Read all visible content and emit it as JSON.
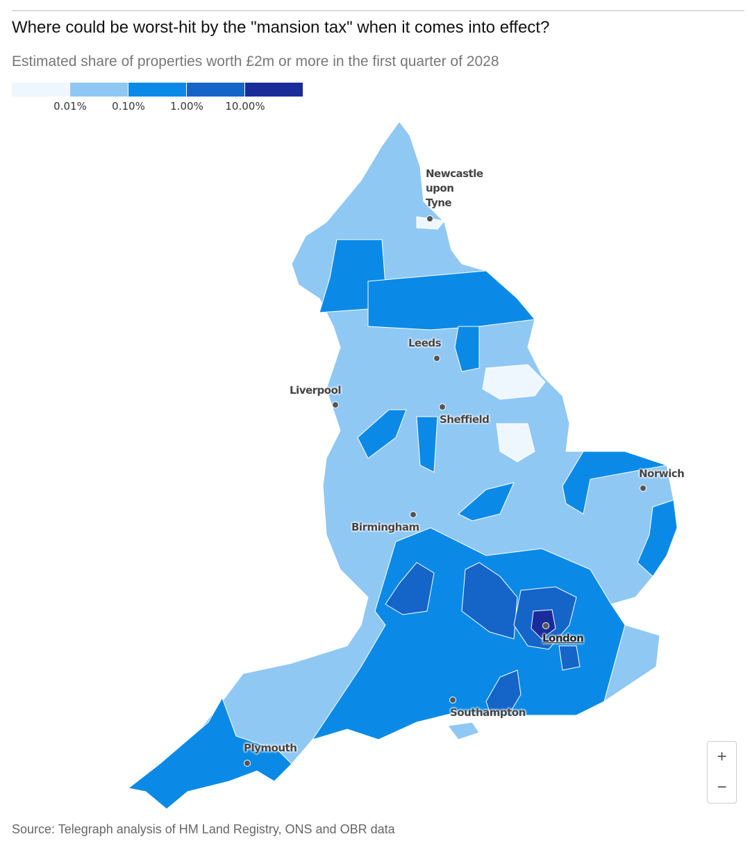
{
  "header": {
    "title": "Where could be worst-hit by the \"mansion tax\" when it comes into effect?",
    "subtitle": "Estimated share of properties worth £2m or more in the first quarter of 2028"
  },
  "legend": {
    "colors": [
      "#eef6fe",
      "#90c8f4",
      "#0a8ae6",
      "#1565c8",
      "#1a2b9a"
    ],
    "ticks": [
      "0.01%",
      "0.10%",
      "1.00%",
      "10.00%"
    ]
  },
  "cities": [
    {
      "label": "Newcastle upon Tyne"
    },
    {
      "label": "Leeds"
    },
    {
      "label": "Liverpool"
    },
    {
      "label": "Sheffield"
    },
    {
      "label": "Norwich"
    },
    {
      "label": "Birmingham"
    },
    {
      "label": "London"
    },
    {
      "label": "Southampton"
    },
    {
      "label": "Plymouth"
    }
  ],
  "controls": {
    "zoom_in": "+",
    "zoom_out": "−"
  },
  "footer": {
    "source": "Source: Telegraph analysis of HM Land Registry, ONS and OBR data"
  }
}
